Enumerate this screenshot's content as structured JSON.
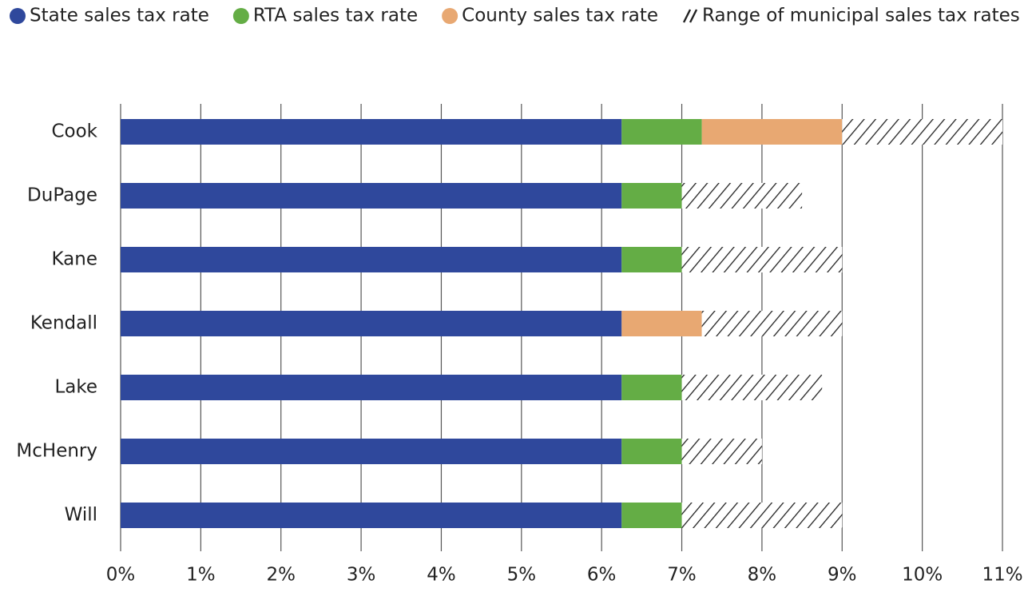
{
  "chart_data": {
    "type": "stacked-bar-horizontal",
    "categories": [
      "Cook",
      "DuPage",
      "Kane",
      "Kendall",
      "Lake",
      "McHenry",
      "Will"
    ],
    "series": [
      {
        "name": "State sales tax rate",
        "color": "#2f489c",
        "values": [
          6.25,
          6.25,
          6.25,
          6.25,
          6.25,
          6.25,
          6.25
        ]
      },
      {
        "name": "RTA sales tax rate",
        "color": "#64ad45",
        "values": [
          1.0,
          0.75,
          0.75,
          0,
          0.75,
          0.75,
          0.75
        ]
      },
      {
        "name": "County sales tax rate",
        "color": "#e8a872",
        "values": [
          1.75,
          0,
          0,
          1.0,
          0,
          0,
          0
        ]
      },
      {
        "name": "Range of municipal sales tax rates",
        "color": "#222222",
        "hatch": true,
        "values": [
          2.0,
          1.5,
          2.0,
          1.75,
          1.75,
          1.0,
          2.0
        ]
      }
    ],
    "xlim": [
      0,
      11
    ],
    "xticks": [
      {
        "value": 0,
        "label": "0%"
      },
      {
        "value": 1,
        "label": "1%"
      },
      {
        "value": 2,
        "label": "2%"
      },
      {
        "value": 3,
        "label": "3%"
      },
      {
        "value": 4,
        "label": "4%"
      },
      {
        "value": 5,
        "label": "5%"
      },
      {
        "value": 6,
        "label": "6%"
      },
      {
        "value": 7,
        "label": "7%"
      },
      {
        "value": 8,
        "label": "8%"
      },
      {
        "value": 9,
        "label": "9%"
      },
      {
        "value": 10,
        "label": "10%"
      },
      {
        "value": 11,
        "label": "11%"
      }
    ],
    "grid": true,
    "legend": "top"
  }
}
